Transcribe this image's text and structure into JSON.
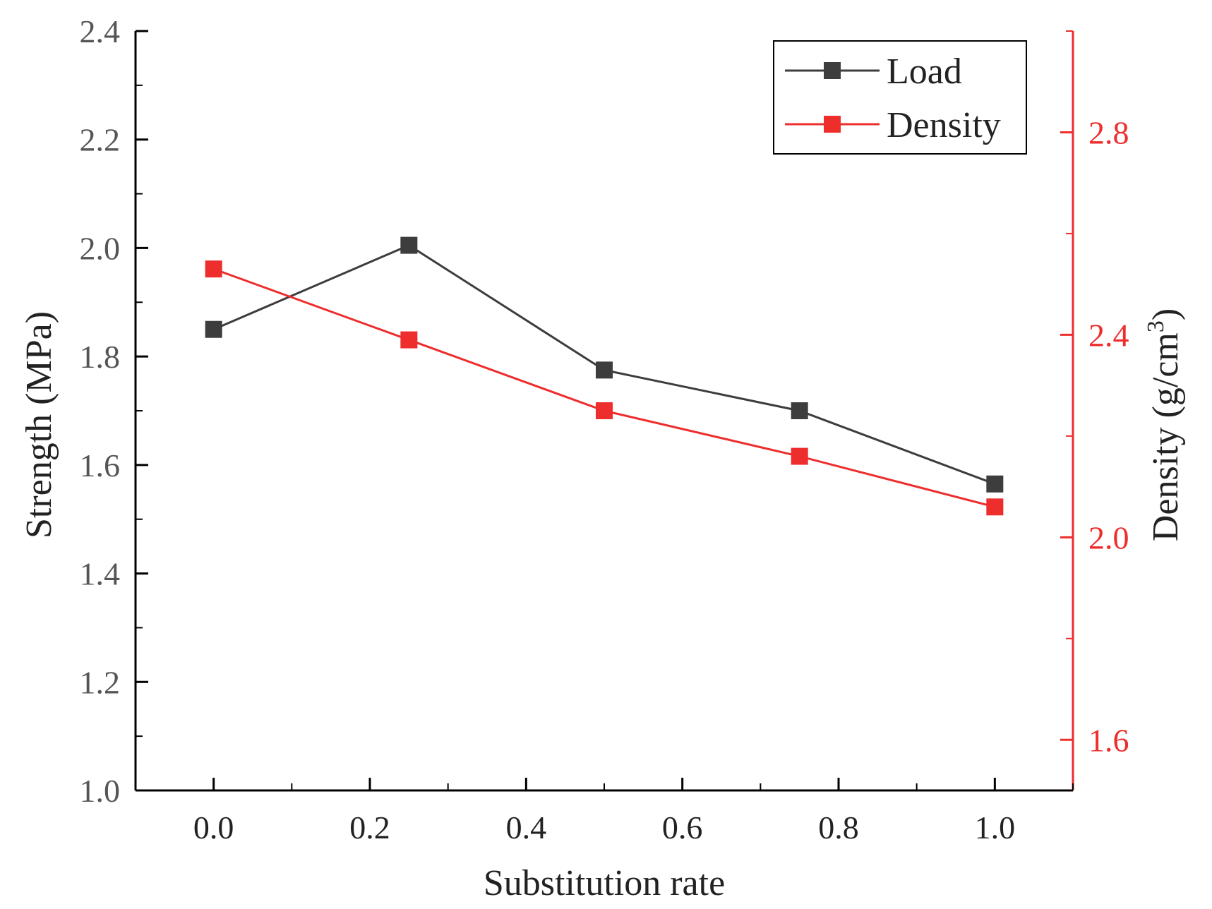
{
  "chart_data": {
    "type": "line",
    "x": [
      0.0,
      0.25,
      0.5,
      0.75,
      1.0
    ],
    "series": [
      {
        "name": "Load",
        "axis": "left",
        "color": "#3d3d3d",
        "values": [
          1.85,
          2.005,
          1.775,
          1.7,
          1.565
        ]
      },
      {
        "name": "Density",
        "axis": "right",
        "color": "#ee2d2d",
        "values": [
          2.53,
          2.39,
          2.25,
          2.16,
          2.06
        ]
      }
    ],
    "xlabel": "Substitution rate",
    "ylabel": "Strength (MPa)",
    "y2label_main": "Density (g/cm",
    "y2label_sup": "3",
    "y2label_close": ")",
    "xlim": [
      -0.1,
      1.1
    ],
    "ylim": [
      1.0,
      2.4
    ],
    "y2lim": [
      1.5,
      3.0
    ],
    "xticks": [
      0.0,
      0.2,
      0.4,
      0.6,
      0.8,
      1.0
    ],
    "xtick_labels": [
      "0.0",
      "0.2",
      "0.4",
      "0.6",
      "0.8",
      "1.0"
    ],
    "yticks": [
      1.0,
      1.2,
      1.4,
      1.6,
      1.8,
      2.0,
      2.2,
      2.4
    ],
    "ytick_labels": [
      "1.0",
      "1.2",
      "1.4",
      "1.6",
      "1.8",
      "2.0",
      "2.2",
      "2.4"
    ],
    "y2ticks": [
      1.6,
      2.0,
      2.4,
      2.8
    ],
    "y2tick_labels": [
      "1.6",
      "2.0",
      "2.4",
      "2.8"
    ],
    "grid": false,
    "legend_position": "top-right",
    "axis_color_left": "#000000",
    "axis_color_right": "#ee2d2d",
    "tick_text_color_left": "#555555"
  }
}
